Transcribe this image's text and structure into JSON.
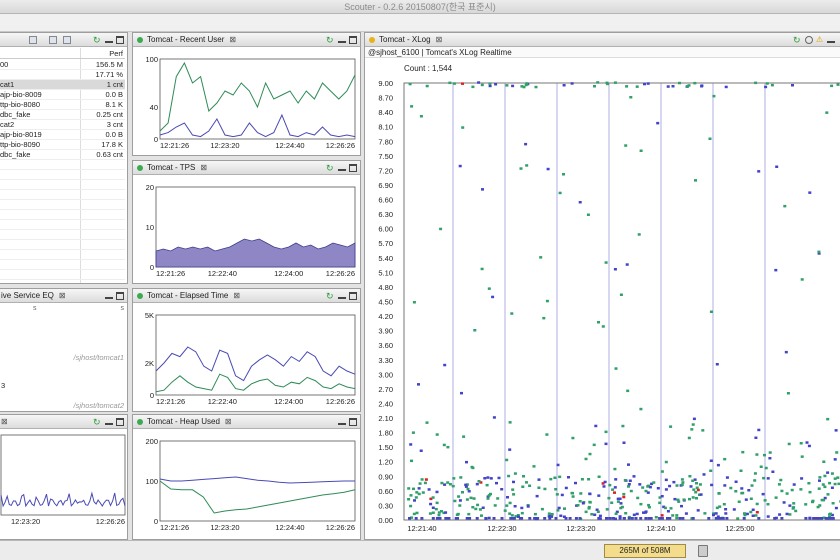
{
  "window": {
    "title": "Scouter - 0.2.6 20150807(한국 표준시)"
  },
  "colors": {
    "green": "#2e8b57",
    "blue": "#4a4ab5",
    "purple_fill": "#8f86c6",
    "red": "#e02020",
    "green_mark": "#31a06a",
    "blue_mark": "#4444c8"
  },
  "object_panel": {
    "column_header": "Perf",
    "rows": [
      {
        "name": "00",
        "value": "156.5 M",
        "selected": false
      },
      {
        "name": "",
        "value": "17.71 %",
        "selected": false
      },
      {
        "name": "cat1",
        "value": "1 cnt",
        "selected": true
      },
      {
        "name": "ajp-bio-8009",
        "value": "0.0 B",
        "selected": false
      },
      {
        "name": "ttp-bio-8080",
        "value": "8.1 K",
        "selected": false
      },
      {
        "name": "dbc_fake",
        "value": "0.25 cnt",
        "selected": false
      },
      {
        "name": "cat2",
        "value": "3 cnt",
        "selected": false
      },
      {
        "name": "ajp-bio-8019",
        "value": "0.0 B",
        "selected": false
      },
      {
        "name": "ttp-bio-8090",
        "value": "17.8 K",
        "selected": false
      },
      {
        "name": "dbc_fake",
        "value": "0.63 cnt",
        "selected": false
      }
    ]
  },
  "active_panel": {
    "title": "ive Service EQ",
    "label1": "/sjhost/tomcat1",
    "label2": "/sjhost/tomcat2",
    "mark1": "s",
    "mark2": "s",
    "value": "3"
  },
  "recent_user": {
    "title": "Tomcat - Recent User",
    "y_ticks": [
      "100",
      "40",
      "0"
    ],
    "y_values": [
      100,
      40,
      0
    ],
    "ylim": [
      0,
      100
    ],
    "x_ticks": [
      "12:21:26",
      "12:23:20",
      "12:24:40",
      "12:26:26"
    ]
  },
  "tps": {
    "title": "Tomcat - TPS",
    "y_ticks": [
      "20",
      "10",
      "0"
    ],
    "y_values": [
      20,
      10,
      0
    ],
    "ylim": [
      0,
      20
    ],
    "x_ticks": [
      "12:21:26",
      "12:22:40",
      "12:24:00",
      "12:26:26"
    ]
  },
  "elapsed": {
    "title": "Tomcat - Elapsed Time",
    "y_ticks": [
      "5K",
      "2K",
      "0"
    ],
    "y_values": [
      5000,
      2000,
      0
    ],
    "ylim": [
      0,
      5000
    ],
    "x_ticks": [
      "12:21:26",
      "12:22:40",
      "12:24:00",
      "12:26:26"
    ]
  },
  "heap": {
    "title": "Tomcat - Heap Used",
    "y_ticks": [
      "200",
      "100",
      "0"
    ],
    "y_values": [
      200,
      100,
      0
    ],
    "ylim": [
      0,
      200
    ],
    "x_ticks": [
      "12:21:26",
      "12:23:20",
      "12:24:40",
      "12:26:26"
    ]
  },
  "bottom_left": {
    "x_ticks": [
      "12:23:20",
      "12:26:26"
    ]
  },
  "xlog": {
    "title": "Tomcat - XLog",
    "subtitle": "@sjhost_6100 | Tomcat's XLog Realtime",
    "count_label": "Count : 1,544",
    "y_ticks": [
      "9.00",
      "8.70",
      "8.40",
      "8.10",
      "7.80",
      "7.50",
      "7.20",
      "6.90",
      "6.60",
      "6.30",
      "6.00",
      "5.70",
      "5.40",
      "5.10",
      "4.80",
      "4.50",
      "4.20",
      "3.90",
      "3.60",
      "3.30",
      "3.00",
      "2.70",
      "2.40",
      "2.10",
      "1.80",
      "1.50",
      "1.20",
      "0.90",
      "0.60",
      "0.30",
      "0.00"
    ],
    "ylim": [
      0,
      9
    ],
    "x_ticks": [
      "12:21:40",
      "12:22:30",
      "12:23:20",
      "12:24:10",
      "12:25:00"
    ]
  },
  "chart_data": [
    {
      "type": "line",
      "title": "Tomcat - Recent User",
      "ylim": [
        0,
        100
      ],
      "series": [
        {
          "color": "green",
          "values": [
            10,
            20,
            78,
            95,
            70,
            78,
            35,
            45,
            60,
            55,
            70,
            60,
            40,
            70,
            50,
            55,
            60,
            45,
            60,
            50,
            70,
            60,
            50,
            60,
            80
          ]
        },
        {
          "color": "blue",
          "values": [
            5,
            8,
            15,
            20,
            5,
            3,
            10,
            25,
            5,
            3,
            5,
            20,
            8,
            3,
            8,
            30,
            5,
            3,
            8,
            5,
            15,
            5,
            3,
            5,
            3
          ]
        }
      ]
    },
    {
      "type": "area",
      "title": "Tomcat - TPS",
      "ylim": [
        0,
        20
      ],
      "series": [
        {
          "color": "purple",
          "values": [
            4,
            4.5,
            4,
            5,
            4.5,
            5,
            4.5,
            5,
            4,
            4.5,
            5,
            6,
            7,
            6.5,
            7,
            6,
            5,
            4.5,
            5,
            6,
            5,
            5.5,
            4.5,
            5,
            6,
            5.5,
            5,
            6
          ]
        }
      ]
    },
    {
      "type": "line",
      "title": "Tomcat - Elapsed Time",
      "ylim": [
        0,
        5000
      ],
      "series": [
        {
          "color": "blue",
          "values": [
            1500,
            2000,
            2600,
            2400,
            3000,
            2700,
            1800,
            1500,
            2800,
            2600,
            1200,
            900,
            1800,
            2200,
            2500,
            2200,
            1800,
            2400,
            2100,
            2700,
            2400,
            1500,
            1200,
            1800,
            1500,
            1300
          ]
        },
        {
          "color": "green",
          "values": [
            200,
            300,
            800,
            1200,
            800,
            500,
            400,
            300,
            1300,
            1100,
            400,
            300,
            700,
            900,
            1000,
            600,
            500,
            800,
            700,
            1100,
            900,
            500,
            400,
            700,
            500,
            400
          ]
        }
      ]
    },
    {
      "type": "line",
      "title": "Tomcat - Heap Used",
      "ylim": [
        0,
        200
      ],
      "series": [
        {
          "color": "blue",
          "values": [
            105,
            100,
            100,
            102,
            104,
            106,
            108,
            110,
            106,
            102,
            100,
            97,
            95,
            96,
            97,
            98,
            99,
            100,
            100
          ]
        },
        {
          "color": "green",
          "values": [
            100,
            80,
            78,
            78,
            60,
            20,
            25,
            28,
            30,
            35,
            40,
            45,
            50,
            55,
            60,
            65,
            68,
            72,
            78
          ]
        }
      ]
    }
  ]
}
